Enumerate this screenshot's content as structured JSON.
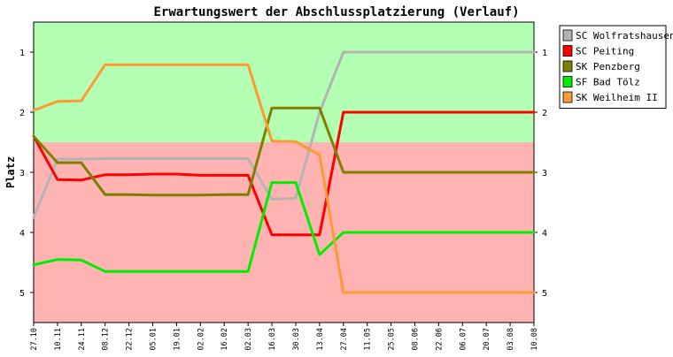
{
  "chart_data": {
    "type": "line",
    "title": "Erwartungswert der Abschlussplatzierung (Verlauf)",
    "xlabel": "",
    "ylabel": "Platz",
    "ylim": [
      5.5,
      0.5
    ],
    "y_ticks": [
      1,
      2,
      3,
      4,
      5
    ],
    "y_reversed": true,
    "grid": false,
    "legend_position": "right",
    "bands": [
      {
        "from": 0.5,
        "to": 2.5,
        "color": "#b3ffb3"
      },
      {
        "from": 2.5,
        "to": 5.5,
        "color": "#ffb3b3"
      }
    ],
    "x": [
      "27.10",
      "10.11",
      "24.11",
      "08.12",
      "22.12",
      "05.01",
      "19.01",
      "02.02",
      "16.02",
      "02.03",
      "16.03",
      "30.03",
      "13.04",
      "27.04",
      "11.05",
      "25.05",
      "08.06",
      "22.06",
      "06.07",
      "20.07",
      "03.08",
      "10.08"
    ],
    "series": [
      {
        "name": "SC Wolfratshausen",
        "color": "#b4b4b4",
        "values": [
          3.75,
          2.78,
          2.78,
          2.77,
          2.77,
          2.77,
          2.77,
          2.77,
          2.77,
          2.77,
          3.45,
          3.43,
          2.0,
          1.0,
          1.0,
          1.0,
          1.0,
          1.0,
          1.0,
          1.0,
          1.0,
          1.0
        ]
      },
      {
        "name": "SC Peiting",
        "color": "#ff0000",
        "values": [
          2.4,
          3.12,
          3.13,
          3.04,
          3.04,
          3.03,
          3.03,
          3.05,
          3.05,
          3.05,
          4.04,
          4.04,
          4.04,
          2.0,
          2.0,
          2.0,
          2.0,
          2.0,
          2.0,
          2.0,
          2.0,
          2.0
        ]
      },
      {
        "name": "SK Penzberg",
        "color": "#808000",
        "values": [
          2.4,
          2.84,
          2.84,
          3.37,
          3.37,
          3.38,
          3.38,
          3.38,
          3.37,
          3.37,
          1.93,
          1.93,
          1.93,
          3.0,
          3.0,
          3.0,
          3.0,
          3.0,
          3.0,
          3.0,
          3.0,
          3.0
        ]
      },
      {
        "name": "SF Bad Tölz",
        "color": "#00ee00",
        "values": [
          4.54,
          4.45,
          4.46,
          4.65,
          4.65,
          4.65,
          4.65,
          4.65,
          4.65,
          4.65,
          3.17,
          3.17,
          4.37,
          4.0,
          4.0,
          4.0,
          4.0,
          4.0,
          4.0,
          4.0,
          4.0,
          4.0
        ]
      },
      {
        "name": "SK Weilheim II",
        "color": "#ff9933",
        "values": [
          1.97,
          1.82,
          1.81,
          1.21,
          1.21,
          1.21,
          1.21,
          1.21,
          1.21,
          1.21,
          2.48,
          2.49,
          2.71,
          5.0,
          5.0,
          5.0,
          5.0,
          5.0,
          5.0,
          5.0,
          5.0,
          5.0
        ]
      }
    ]
  }
}
